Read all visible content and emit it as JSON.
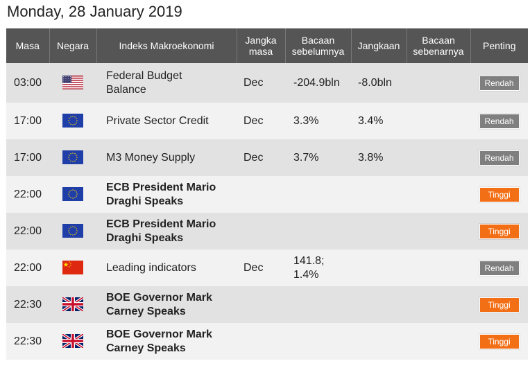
{
  "page_title": "Monday, 28 January 2019",
  "columns": {
    "time": "Masa",
    "country": "Negara",
    "indicator": "Indeks Makroekonomi",
    "period_1": "Jangka",
    "period_2": "masa",
    "previous_1": "Bacaan",
    "previous_2": "sebelumnya",
    "forecast": "Jangkaan",
    "actual_1": "Bacaan",
    "actual_2": "sebenarnya",
    "importance": "Penting"
  },
  "colors": {
    "header_bg": "#555555",
    "row_odd": "#e2e2e2",
    "row_even": "#f2f2f2",
    "low_badge": "#7f7f7f",
    "high_badge": "#f36f16"
  },
  "rows": [
    {
      "time": "03:00",
      "flag": "us-flag-icon",
      "indicator_1": "Federal Budget",
      "indicator_2": "Balance",
      "bold": false,
      "period": "Dec",
      "previous_1": "-204.9bln",
      "previous_2": "",
      "forecast": "-8.0bln",
      "actual": "",
      "importance": "Rendah",
      "level": "low"
    },
    {
      "time": "17:00",
      "flag": "eu-flag-icon",
      "indicator_1": "Private Sector Credit",
      "indicator_2": "",
      "bold": false,
      "period": "Dec",
      "previous_1": "3.3%",
      "previous_2": "",
      "forecast": "3.4%",
      "actual": "",
      "importance": "Rendah",
      "level": "low"
    },
    {
      "time": "17:00",
      "flag": "eu-flag-icon",
      "indicator_1": "M3 Money Supply",
      "indicator_2": "",
      "bold": false,
      "period": "Dec",
      "previous_1": "3.7%",
      "previous_2": "",
      "forecast": "3.8%",
      "actual": "",
      "importance": "Rendah",
      "level": "low"
    },
    {
      "time": "22:00",
      "flag": "eu-flag-icon",
      "indicator_1": "ECB President Mario",
      "indicator_2": "Draghi Speaks",
      "bold": true,
      "period": "",
      "previous_1": "",
      "previous_2": "",
      "forecast": "",
      "actual": "",
      "importance": "Tinggi",
      "level": "high"
    },
    {
      "time": "22:00",
      "flag": "eu-flag-icon",
      "indicator_1": "ECB President Mario",
      "indicator_2": "Draghi Speaks",
      "bold": true,
      "period": "",
      "previous_1": "",
      "previous_2": "",
      "forecast": "",
      "actual": "",
      "importance": "Tinggi",
      "level": "high"
    },
    {
      "time": "22:00",
      "flag": "cn-flag-icon",
      "indicator_1": "Leading indicators",
      "indicator_2": "",
      "bold": false,
      "period": "Dec",
      "previous_1": "141.8;",
      "previous_2": "1.4%",
      "forecast": "",
      "actual": "",
      "importance": "Rendah",
      "level": "low"
    },
    {
      "time": "22:30",
      "flag": "uk-flag-icon",
      "indicator_1": "BOE Governor Mark",
      "indicator_2": "Carney Speaks",
      "bold": true,
      "period": "",
      "previous_1": "",
      "previous_2": "",
      "forecast": "",
      "actual": "",
      "importance": "Tinggi",
      "level": "high"
    },
    {
      "time": "22:30",
      "flag": "uk-flag-icon",
      "indicator_1": "BOE Governor Mark",
      "indicator_2": "Carney Speaks",
      "bold": true,
      "period": "",
      "previous_1": "",
      "previous_2": "",
      "forecast": "",
      "actual": "",
      "importance": "Tinggi",
      "level": "high"
    }
  ]
}
